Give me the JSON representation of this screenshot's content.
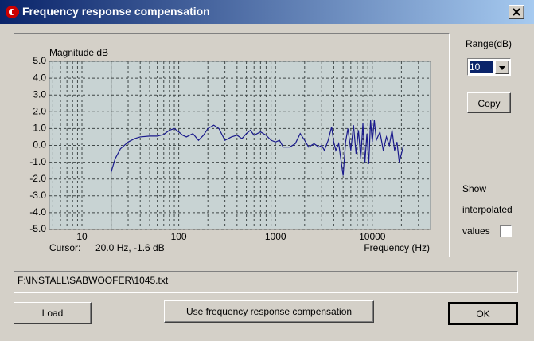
{
  "window": {
    "title": "Frequency response compensation"
  },
  "controls": {
    "range_label": "Range(dB)",
    "range_value": "10",
    "copy": "Copy",
    "show_lines": [
      "Show",
      "interpolated",
      "values"
    ],
    "file_path": "F:\\INSTALL\\SABWOOFER\\1045.txt",
    "load": "Load",
    "use_button": "Use frequency response compensation",
    "ok": "OK"
  },
  "chart_data": {
    "type": "line",
    "y_label": "Magnitude dB",
    "x_label": "Frequency (Hz)",
    "cursor_label": "Cursor:",
    "cursor": {
      "x": 20,
      "y": -1.6,
      "label": "20.0 Hz, -1.6 dB"
    },
    "x_log": true,
    "xlim": [
      4.6,
      40000
    ],
    "xticks": [
      10,
      100,
      1000,
      10000
    ],
    "x_grid": [
      5,
      6,
      7,
      8,
      9,
      20,
      30,
      40,
      50,
      60,
      70,
      80,
      90,
      200,
      300,
      400,
      500,
      600,
      700,
      800,
      900,
      2000,
      3000,
      4000,
      5000,
      6000,
      7000,
      8000,
      9000,
      20000,
      30000
    ],
    "ylim": [
      -5,
      5
    ],
    "yticks": [
      {
        "value": 5,
        "label": "5.0"
      },
      {
        "value": 4,
        "label": "4.0"
      },
      {
        "value": 3,
        "label": "3.0"
      },
      {
        "value": 2,
        "label": "2.0"
      },
      {
        "value": 1,
        "label": "1.0"
      },
      {
        "value": 0,
        "label": "0.0"
      },
      {
        "value": -1,
        "label": "-1.0"
      },
      {
        "value": -2,
        "label": "-2.0"
      },
      {
        "value": -3,
        "label": "-3.0"
      },
      {
        "value": -4,
        "label": "-4.0"
      },
      {
        "value": -5,
        "label": "-5.0"
      }
    ],
    "grid": true,
    "color": "#1a1a8c",
    "x": [
      20,
      22,
      25,
      30,
      35,
      40,
      50,
      60,
      70,
      80,
      90,
      100,
      110,
      120,
      140,
      160,
      180,
      200,
      230,
      260,
      300,
      350,
      400,
      450,
      500,
      550,
      600,
      700,
      800,
      900,
      1000,
      1100,
      1200,
      1400,
      1600,
      1800,
      2000,
      2200,
      2500,
      2800,
      3000,
      3200,
      3500,
      3800,
      4000,
      4200,
      4500,
      5000,
      5300,
      5600,
      6000,
      6400,
      6800,
      7200,
      7600,
      8000,
      8400,
      8800,
      9200,
      9600,
      10000,
      10500,
      11000,
      12000,
      13000,
      14000,
      15000,
      16000,
      17000,
      18000,
      19000,
      20000,
      21000
    ],
    "values": [
      -1.6,
      -0.8,
      -0.2,
      0.2,
      0.4,
      0.5,
      0.55,
      0.55,
      0.65,
      0.9,
      1.0,
      0.8,
      0.6,
      0.5,
      0.7,
      0.3,
      0.6,
      1.0,
      1.2,
      1.0,
      0.3,
      0.5,
      0.6,
      0.4,
      0.7,
      0.9,
      0.6,
      0.8,
      0.6,
      0.3,
      0.2,
      0.3,
      -0.1,
      -0.1,
      0.1,
      0.7,
      0.3,
      -0.1,
      0.1,
      -0.1,
      0.0,
      -0.3,
      0.3,
      1.1,
      0.2,
      -0.3,
      0.1,
      -1.8,
      0.2,
      1.0,
      -0.3,
      1.2,
      -0.5,
      0.9,
      -0.8,
      1.3,
      -1.0,
      0.7,
      -1.1,
      1.5,
      0.2,
      1.5,
      0.3,
      0.8,
      -0.3,
      0.5,
      0.0,
      0.9,
      -0.3,
      0.2,
      -1.0,
      -0.5,
      0.0
    ]
  }
}
